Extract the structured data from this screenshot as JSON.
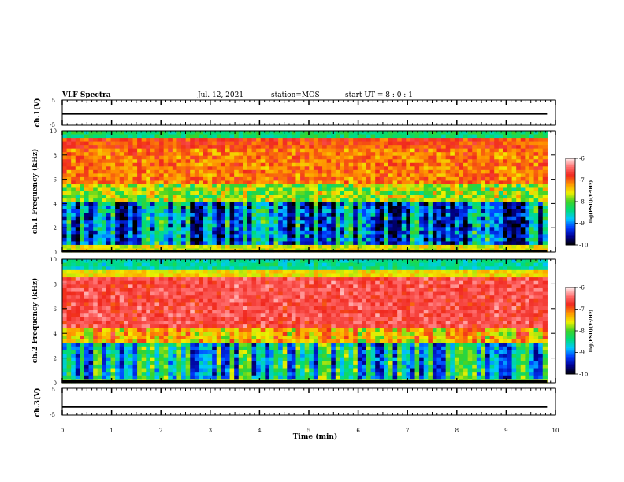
{
  "header": {
    "title": "VLF Spectra",
    "date": "Jul. 12, 2021",
    "station": "station=MOS",
    "start": "start UT =  8 : 0 : 1"
  },
  "chart_data": [
    {
      "type": "line",
      "panel": "ch1-waveform",
      "ylabel": "ch.1(V)",
      "ylim": [
        -5,
        5
      ],
      "yticks": [
        "5",
        "-5"
      ],
      "xlim": [
        0,
        10
      ],
      "level": -0.5
    },
    {
      "type": "heatmap",
      "panel": "ch1-spectrogram",
      "ylabel": "ch.1 Frequency (kHz)",
      "ylim": [
        0,
        10
      ],
      "yticks": [
        "0",
        "2",
        "4",
        "6",
        "8",
        "10"
      ],
      "xlim": [
        0,
        10
      ],
      "data_xmax": 9.83,
      "colorbar": {
        "label": "log(PSD)(V²/Hz)",
        "range": [
          -10,
          -6
        ],
        "ticks": [
          "-6",
          "-7",
          "-8",
          "-9",
          "-10"
        ]
      }
    },
    {
      "type": "heatmap",
      "panel": "ch2-spectrogram",
      "ylabel": "ch.2 Frequency (kHz)",
      "ylim": [
        0,
        10
      ],
      "yticks": [
        "0",
        "2",
        "4",
        "6",
        "8",
        "10"
      ],
      "xlim": [
        0,
        10
      ],
      "data_xmax": 9.83,
      "colorbar": {
        "label": "log(PSD)(V²/Hz)",
        "range": [
          -10,
          -6
        ],
        "ticks": [
          "-6",
          "-7",
          "-8",
          "-9",
          "-10"
        ]
      }
    },
    {
      "type": "line",
      "panel": "ch3-waveform",
      "ylabel": "ch.3(V)",
      "ylim": [
        -5,
        5
      ],
      "yticks": [
        "5",
        "-5"
      ],
      "xlim": [
        0,
        10
      ],
      "xlabel": "Time (min)",
      "xticks": [
        "0",
        "1",
        "2",
        "3",
        "4",
        "5",
        "6",
        "7",
        "8",
        "9",
        "10"
      ],
      "level": -2
    }
  ]
}
